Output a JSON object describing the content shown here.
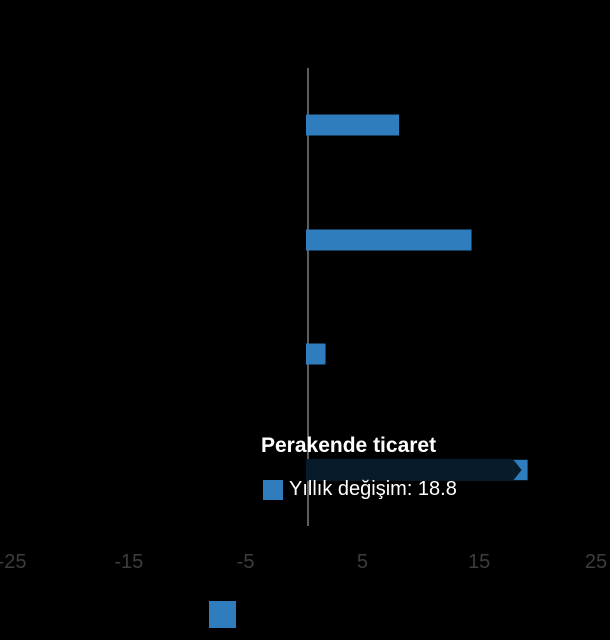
{
  "chart_data": {
    "type": "bar",
    "orientation": "horizontal",
    "series": [
      {
        "values": [
          7.8,
          14,
          1.5,
          18.8
        ]
      }
    ],
    "categories": [
      "",
      "",
      "",
      "Perakende ticaret"
    ],
    "xlim": [
      -25,
      25
    ],
    "x_ticks": [
      -25,
      -15,
      -5,
      5,
      15,
      25
    ],
    "x_tick_labels": [
      "-25",
      "-15",
      "-5",
      "5",
      "15",
      "25"
    ],
    "grid": false,
    "legend": "bottom"
  },
  "tooltip": {
    "category": "Perakende ticaret",
    "label": "Yıllık değişim",
    "value": "18.8",
    "text": "Yıllık değişim: 18.8"
  },
  "colors": {
    "bar": "#2f7dbd",
    "tooltip_bg": "#071b2a",
    "axis": "#bbbbbb",
    "tick": "#3d3d3d",
    "background": "#000000"
  }
}
